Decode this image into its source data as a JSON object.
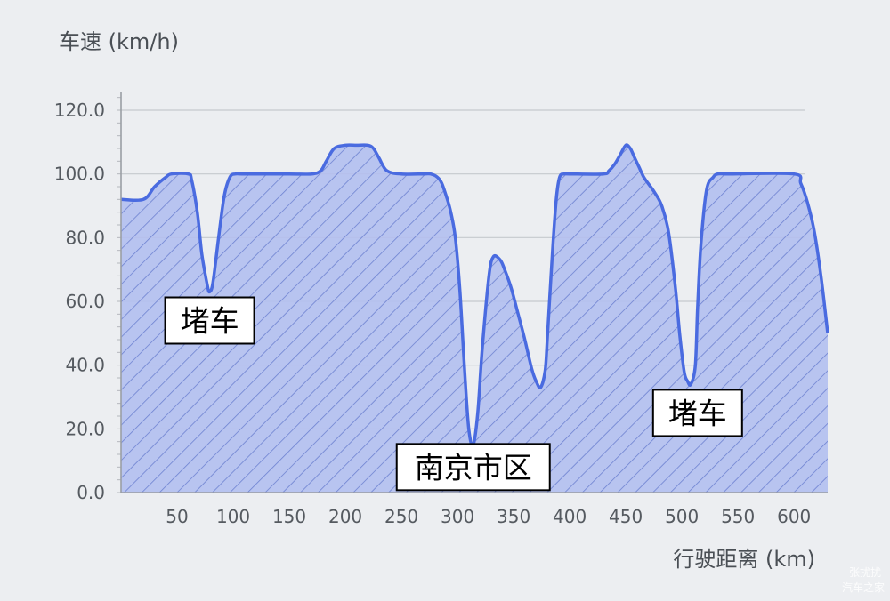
{
  "chart_data": {
    "type": "area",
    "title": "",
    "ylabel": "车速 (km/h)",
    "xlabel": "行驶距离 (km)",
    "xlim": [
      0,
      630
    ],
    "ylim": [
      0,
      120
    ],
    "grid": true,
    "x_ticks": [
      50,
      100,
      150,
      200,
      250,
      300,
      350,
      400,
      450,
      500,
      550,
      600
    ],
    "y_ticks": [
      {
        "value": 0,
        "label": "0.0"
      },
      {
        "value": 20,
        "label": "20.0"
      },
      {
        "value": 40,
        "label": "40.0"
      },
      {
        "value": 60,
        "label": "60.0"
      },
      {
        "value": 80,
        "label": "80.0"
      },
      {
        "value": 100,
        "label": "100.0"
      },
      {
        "value": 120,
        "label": "120.0"
      }
    ],
    "series": [
      {
        "name": "",
        "color": "#4a6be0",
        "fill": "#b3bff0",
        "x": [
          0,
          20,
          30,
          40,
          45,
          60,
          63,
          68,
          72,
          77,
          79,
          82,
          87,
          92,
          97,
          102,
          110,
          150,
          170,
          178,
          183,
          190,
          200,
          210,
          220,
          225,
          230,
          237,
          250,
          270,
          276,
          282,
          286,
          290,
          294,
          298,
          302,
          306,
          310,
          314,
          318,
          322,
          328,
          332,
          338,
          342,
          348,
          354,
          360,
          366,
          370,
          374,
          378,
          380,
          384,
          388,
          391,
          395,
          400,
          430,
          435,
          440,
          445,
          450,
          454,
          458,
          462,
          466,
          470,
          476,
          482,
          488,
          494,
          498,
          502,
          505,
          508,
          512,
          514,
          517,
          522,
          528,
          532,
          538,
          545,
          600,
          606,
          612,
          618,
          624,
          630
        ],
        "y": [
          92,
          92,
          96,
          99,
          100,
          100,
          98,
          88,
          75,
          65,
          63,
          66,
          80,
          93,
          99,
          100,
          100,
          100,
          100,
          101,
          104,
          108,
          109,
          109,
          109,
          108,
          105,
          101,
          100,
          100,
          100,
          99,
          97,
          93,
          88,
          80,
          64,
          40,
          20,
          15,
          25,
          45,
          68,
          74,
          73,
          70,
          64,
          56,
          48,
          39,
          35,
          33,
          38,
          48,
          72,
          92,
          99,
          100,
          100,
          100,
          101,
          103,
          106,
          109,
          108,
          105,
          102,
          99,
          97,
          94,
          90,
          82,
          65,
          50,
          38,
          35,
          34,
          40,
          58,
          78,
          95,
          99,
          100,
          100,
          100,
          100,
          97,
          91,
          82,
          68,
          50
        ]
      }
    ],
    "annotations": [
      {
        "text": "堵车",
        "x": 79,
        "y": 54
      },
      {
        "text": "南京市区",
        "x": 314,
        "y": 8
      },
      {
        "text": "堵车",
        "x": 514,
        "y": 25
      }
    ]
  },
  "watermark": {
    "line1": "张扰扰",
    "line2": "汽车之家"
  }
}
